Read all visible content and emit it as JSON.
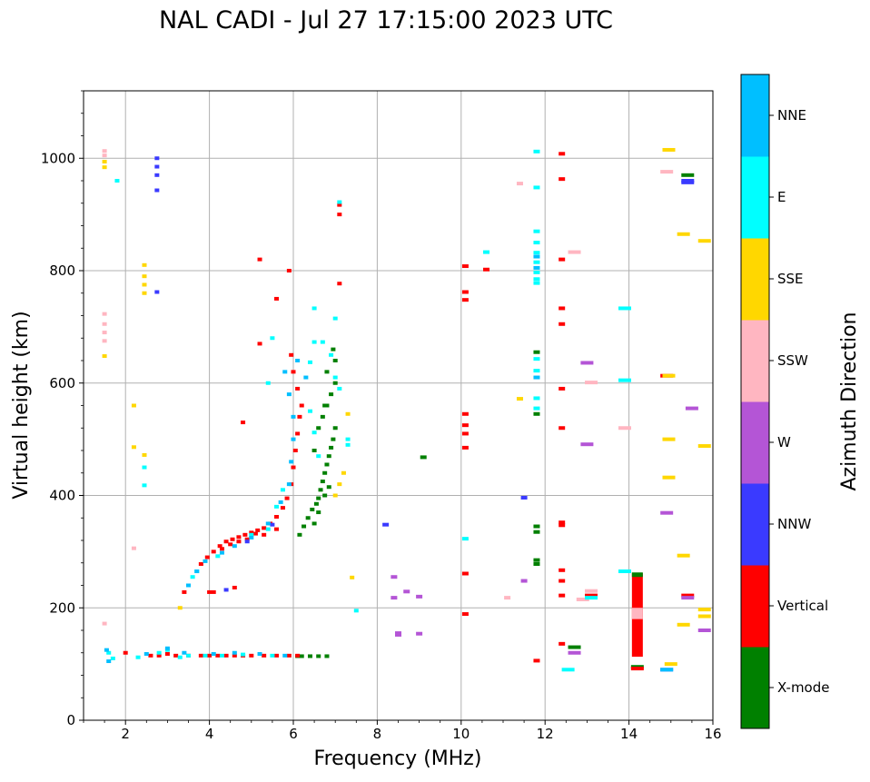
{
  "chart_data": {
    "type": "scatter",
    "title": "NAL CADI - Jul 27 17:15:00 2023 UTC",
    "xlabel": "Frequency (MHz)",
    "ylabel": "Virtual height (km)",
    "xlim": [
      1,
      16
    ],
    "ylim": [
      0,
      1120
    ],
    "xticks": [
      2,
      4,
      6,
      8,
      10,
      12,
      14,
      16
    ],
    "yticks": [
      0,
      200,
      400,
      600,
      800,
      1000
    ],
    "grid": true,
    "colorbar": {
      "label": "Azimuth Direction",
      "categories": [
        "X-mode",
        "Vertical",
        "NNW",
        "W",
        "SSW",
        "SSE",
        "E",
        "NNE"
      ],
      "colors": [
        "#008000",
        "#ff0000",
        "#3a3aff",
        "#b455d6",
        "#ffb6c1",
        "#ffd700",
        "#00ffff",
        "#00bfff"
      ]
    },
    "series": [
      {
        "name": "X-mode",
        "points": [
          [
            6.2,
            114
          ],
          [
            6.4,
            114
          ],
          [
            6.6,
            114
          ],
          [
            6.8,
            114
          ],
          [
            6.1,
            114
          ],
          [
            6.15,
            330
          ],
          [
            6.25,
            345
          ],
          [
            6.35,
            360
          ],
          [
            6.45,
            375
          ],
          [
            6.55,
            385
          ],
          [
            6.6,
            395
          ],
          [
            6.65,
            410
          ],
          [
            6.7,
            425
          ],
          [
            6.75,
            440
          ],
          [
            6.8,
            455
          ],
          [
            6.85,
            470
          ],
          [
            6.9,
            485
          ],
          [
            6.95,
            500
          ],
          [
            7.0,
            520
          ],
          [
            6.7,
            540
          ],
          [
            6.8,
            560
          ],
          [
            6.9,
            580
          ],
          [
            7.0,
            600
          ],
          [
            6.8,
            620
          ],
          [
            7.0,
            640
          ],
          [
            6.95,
            660
          ],
          [
            6.5,
            350
          ],
          [
            6.6,
            370
          ],
          [
            6.75,
            400
          ],
          [
            6.85,
            415
          ],
          [
            6.5,
            480
          ],
          [
            6.6,
            520
          ],
          [
            6.75,
            560
          ],
          [
            9.1,
            468
          ],
          [
            11.8,
            655
          ],
          [
            11.8,
            545
          ],
          [
            11.8,
            345
          ],
          [
            11.8,
            335
          ],
          [
            11.8,
            285
          ],
          [
            11.8,
            278
          ],
          [
            12.7,
            130
          ],
          [
            14.2,
            95
          ],
          [
            15.4,
            970
          ]
        ]
      },
      {
        "name": "Vertical",
        "points": [
          [
            2.0,
            120
          ],
          [
            2.6,
            115
          ],
          [
            2.8,
            115
          ],
          [
            3.0,
            118
          ],
          [
            3.2,
            115
          ],
          [
            3.5,
            115
          ],
          [
            3.8,
            115
          ],
          [
            4.0,
            115
          ],
          [
            4.2,
            115
          ],
          [
            4.4,
            115
          ],
          [
            4.6,
            115
          ],
          [
            4.8,
            115
          ],
          [
            5.0,
            115
          ],
          [
            5.3,
            115
          ],
          [
            5.6,
            115
          ],
          [
            5.9,
            115
          ],
          [
            6.1,
            115
          ],
          [
            3.8,
            278
          ],
          [
            3.95,
            290
          ],
          [
            4.1,
            300
          ],
          [
            4.25,
            310
          ],
          [
            4.4,
            318
          ],
          [
            4.55,
            322
          ],
          [
            4.7,
            326
          ],
          [
            4.85,
            330
          ],
          [
            5.0,
            334
          ],
          [
            5.15,
            338
          ],
          [
            5.3,
            342
          ],
          [
            5.45,
            350
          ],
          [
            5.6,
            362
          ],
          [
            5.75,
            378
          ],
          [
            5.85,
            395
          ],
          [
            5.95,
            420
          ],
          [
            6.0,
            450
          ],
          [
            6.05,
            480
          ],
          [
            6.1,
            510
          ],
          [
            6.15,
            540
          ],
          [
            6.2,
            560
          ],
          [
            6.1,
            590
          ],
          [
            6.0,
            620
          ],
          [
            5.95,
            650
          ],
          [
            4.5,
            313
          ],
          [
            4.7,
            318
          ],
          [
            4.9,
            322
          ],
          [
            5.1,
            332
          ],
          [
            5.3,
            330
          ],
          [
            5.6,
            340
          ],
          [
            4.3,
            305
          ],
          [
            3.4,
            228
          ],
          [
            4.1,
            228
          ],
          [
            4.6,
            236
          ],
          [
            5.2,
            820
          ],
          [
            5.9,
            800
          ],
          [
            5.6,
            750
          ],
          [
            5.2,
            670
          ],
          [
            4.8,
            530
          ],
          [
            7.1,
            900
          ],
          [
            7.1,
            917
          ],
          [
            7.1,
            777
          ],
          [
            4.0,
            228
          ],
          [
            10.1,
            808
          ],
          [
            10.1,
            762
          ],
          [
            10.1,
            748
          ],
          [
            10.1,
            545
          ],
          [
            10.1,
            525
          ],
          [
            10.1,
            510
          ],
          [
            10.1,
            485
          ],
          [
            10.1,
            261
          ],
          [
            10.1,
            189
          ],
          [
            10.6,
            802
          ],
          [
            11.8,
            106
          ],
          [
            12.4,
            1008
          ],
          [
            12.4,
            963
          ],
          [
            12.4,
            820
          ],
          [
            12.4,
            733
          ],
          [
            12.4,
            705
          ],
          [
            12.4,
            590
          ],
          [
            12.4,
            520
          ],
          [
            12.4,
            352
          ],
          [
            12.4,
            347
          ],
          [
            12.4,
            267
          ],
          [
            12.4,
            248
          ],
          [
            12.4,
            222
          ],
          [
            12.4,
            136
          ],
          [
            13.1,
            222
          ],
          [
            14.9,
            613
          ],
          [
            15.4,
            222
          ],
          [
            14.2,
            92
          ]
        ]
      },
      {
        "name": "NNW",
        "points": [
          [
            2.75,
            1000
          ],
          [
            2.75,
            985
          ],
          [
            2.75,
            970
          ],
          [
            2.75,
            943
          ],
          [
            2.75,
            762
          ],
          [
            8.2,
            348
          ],
          [
            11.5,
            396
          ],
          [
            15.4,
            960
          ],
          [
            15.4,
            957
          ],
          [
            14.9,
            90
          ],
          [
            4.4,
            232
          ],
          [
            4.9,
            318
          ],
          [
            5.5,
            348
          ]
        ]
      },
      {
        "name": "W",
        "points": [
          [
            8.4,
            255
          ],
          [
            8.4,
            218
          ],
          [
            8.5,
            155
          ],
          [
            8.5,
            152
          ],
          [
            8.7,
            229
          ],
          [
            9.0,
            220
          ],
          [
            9.0,
            154
          ],
          [
            13.0,
            636
          ],
          [
            13.0,
            491
          ],
          [
            12.7,
            120
          ],
          [
            14.9,
            369
          ],
          [
            15.5,
            555
          ],
          [
            15.8,
            160
          ],
          [
            15.4,
            218
          ],
          [
            11.5,
            248
          ]
        ]
      },
      {
        "name": "SSW",
        "points": [
          [
            1.5,
            1013
          ],
          [
            1.5,
            1005
          ],
          [
            1.5,
            723
          ],
          [
            1.5,
            705
          ],
          [
            1.5,
            690
          ],
          [
            1.5,
            675
          ],
          [
            1.5,
            172
          ],
          [
            2.2,
            306
          ],
          [
            11.4,
            955
          ],
          [
            12.7,
            833
          ],
          [
            13.1,
            601
          ],
          [
            13.1,
            230
          ],
          [
            13.9,
            520
          ],
          [
            14.9,
            976
          ],
          [
            11.1,
            218
          ],
          [
            12.9,
            215
          ]
        ]
      },
      {
        "name": "SSE",
        "points": [
          [
            1.5,
            994
          ],
          [
            1.5,
            984
          ],
          [
            1.5,
            648
          ],
          [
            2.2,
            560
          ],
          [
            2.2,
            486
          ],
          [
            2.45,
            810
          ],
          [
            2.45,
            790
          ],
          [
            2.45,
            775
          ],
          [
            2.45,
            760
          ],
          [
            2.45,
            472
          ],
          [
            3.3,
            200
          ],
          [
            7.0,
            400
          ],
          [
            7.1,
            420
          ],
          [
            7.2,
            440
          ],
          [
            7.3,
            545
          ],
          [
            7.4,
            254
          ],
          [
            11.4,
            572
          ],
          [
            14.95,
            1015
          ],
          [
            14.95,
            613
          ],
          [
            14.95,
            500
          ],
          [
            14.95,
            432
          ],
          [
            15.3,
            865
          ],
          [
            15.8,
            853
          ],
          [
            15.8,
            488
          ],
          [
            15.3,
            293
          ],
          [
            15.3,
            170
          ],
          [
            15.8,
            197
          ],
          [
            15.8,
            185
          ],
          [
            15.0,
            100
          ]
        ]
      },
      {
        "name": "E",
        "points": [
          [
            1.6,
            120
          ],
          [
            1.7,
            110
          ],
          [
            2.3,
            112
          ],
          [
            2.8,
            120
          ],
          [
            3.0,
            125
          ],
          [
            3.3,
            112
          ],
          [
            3.5,
            115
          ],
          [
            3.9,
            115
          ],
          [
            4.3,
            115
          ],
          [
            4.8,
            117
          ],
          [
            5.5,
            115
          ],
          [
            3.6,
            255
          ],
          [
            3.7,
            265
          ],
          [
            4.2,
            292
          ],
          [
            5.0,
            330
          ],
          [
            5.4,
            340
          ],
          [
            5.6,
            380
          ],
          [
            5.75,
            410
          ],
          [
            6.5,
            673
          ],
          [
            6.7,
            673
          ],
          [
            6.4,
            637
          ],
          [
            6.9,
            650
          ],
          [
            7.0,
            610
          ],
          [
            7.1,
            590
          ],
          [
            6.4,
            550
          ],
          [
            6.5,
            512
          ],
          [
            6.6,
            470
          ],
          [
            7.3,
            500
          ],
          [
            7.3,
            490
          ],
          [
            5.5,
            680
          ],
          [
            5.4,
            600
          ],
          [
            2.45,
            418
          ],
          [
            2.45,
            450
          ],
          [
            1.8,
            960
          ],
          [
            10.1,
            323
          ],
          [
            10.6,
            833
          ],
          [
            11.8,
            1012
          ],
          [
            11.8,
            948
          ],
          [
            11.8,
            870
          ],
          [
            11.8,
            850
          ],
          [
            11.8,
            832
          ],
          [
            11.8,
            815
          ],
          [
            11.8,
            797
          ],
          [
            11.8,
            785
          ],
          [
            11.8,
            778
          ],
          [
            11.8,
            643
          ],
          [
            11.8,
            622
          ],
          [
            11.8,
            573
          ],
          [
            11.8,
            555
          ],
          [
            12.55,
            90
          ],
          [
            13.1,
            218
          ],
          [
            13.9,
            733
          ],
          [
            13.9,
            605
          ],
          [
            13.9,
            265
          ],
          [
            7.1,
            922
          ],
          [
            7.0,
            715
          ],
          [
            6.5,
            733
          ],
          [
            7.5,
            195
          ]
        ]
      },
      {
        "name": "NNE",
        "points": [
          [
            1.55,
            125
          ],
          [
            1.6,
            105
          ],
          [
            2.5,
            118
          ],
          [
            3.0,
            128
          ],
          [
            3.4,
            120
          ],
          [
            4.1,
            118
          ],
          [
            4.6,
            120
          ],
          [
            5.2,
            118
          ],
          [
            5.8,
            115
          ],
          [
            3.5,
            240
          ],
          [
            3.7,
            265
          ],
          [
            3.9,
            283
          ],
          [
            4.3,
            298
          ],
          [
            4.6,
            310
          ],
          [
            5.0,
            325
          ],
          [
            5.4,
            350
          ],
          [
            5.7,
            388
          ],
          [
            5.9,
            420
          ],
          [
            5.95,
            460
          ],
          [
            6.0,
            500
          ],
          [
            6.0,
            540
          ],
          [
            5.9,
            580
          ],
          [
            5.8,
            620
          ],
          [
            6.1,
            640
          ],
          [
            6.3,
            610
          ],
          [
            11.8,
            610
          ],
          [
            11.8,
            825
          ],
          [
            11.8,
            805
          ],
          [
            14.9,
            90
          ]
        ]
      }
    ],
    "bars": [
      {
        "name": "Vertical",
        "x": 14.2,
        "y0": 113,
        "y1": 262
      },
      {
        "name": "X-mode",
        "x": 14.2,
        "y0": 255,
        "y1": 263
      },
      {
        "name": "SSW",
        "x": 14.2,
        "y0": 180,
        "y1": 200
      }
    ]
  }
}
